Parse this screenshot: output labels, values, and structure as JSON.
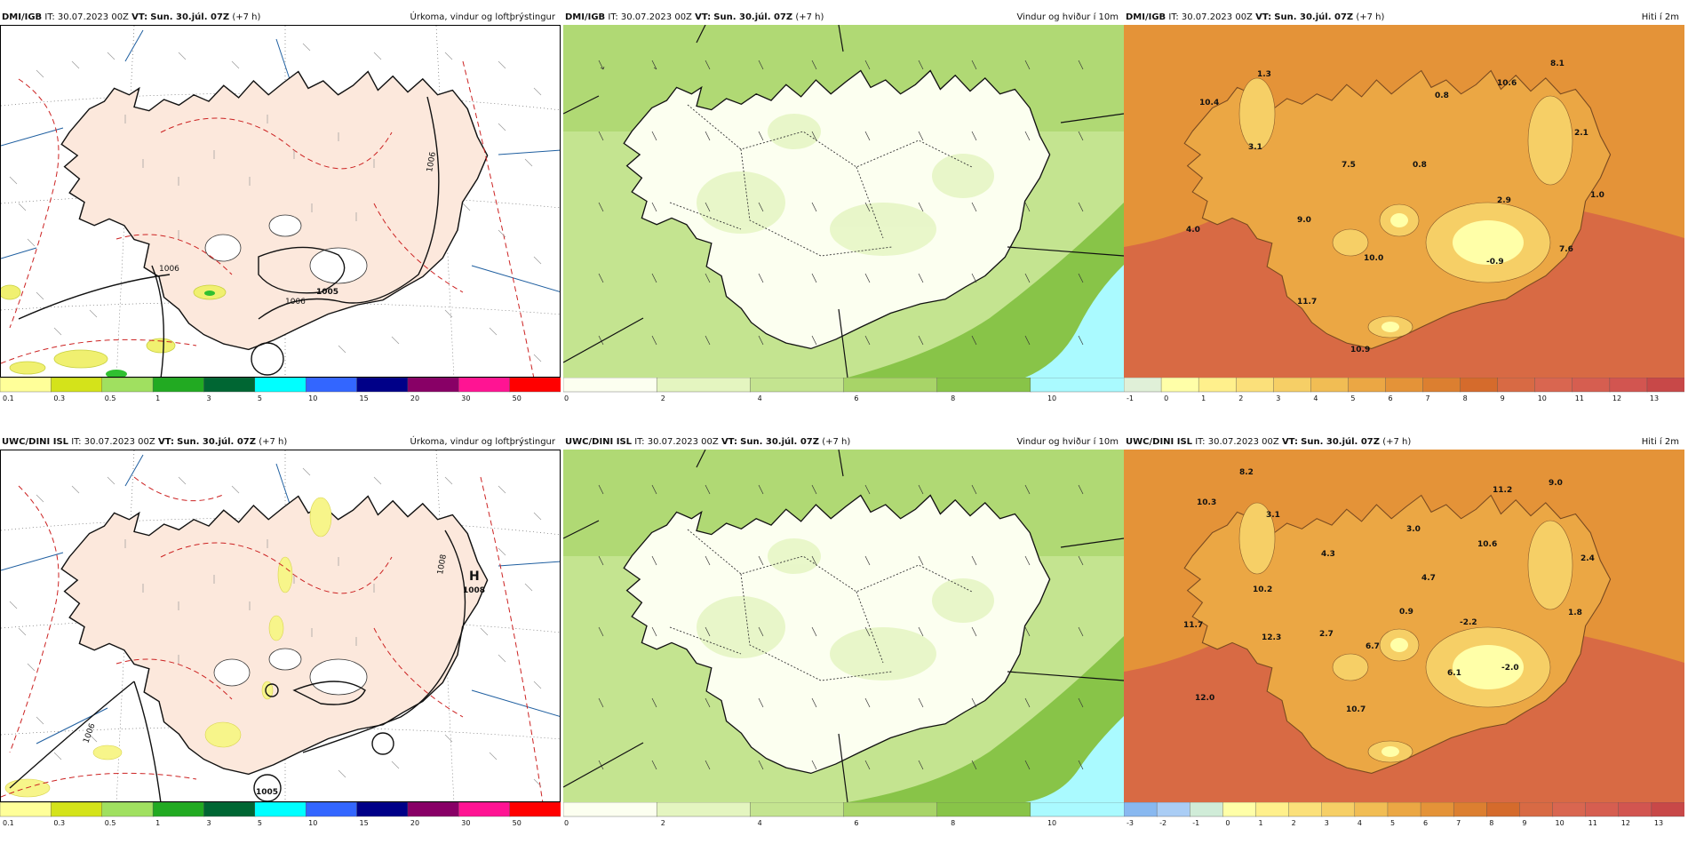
{
  "panels": [
    {
      "id": "p1",
      "type": "precip",
      "model": "DMI/IGB",
      "it_label": "IT:",
      "it_value": "30.07.2023 00Z",
      "vt_label": "VT:",
      "vt_value": "Sun. 30.júl. 07Z",
      "lead": "(+7 h)",
      "title": "Úrkoma, vindur og loftþrýstingur",
      "isobars": [
        "1006",
        "1006",
        "1005",
        "1006"
      ],
      "colorbar": {
        "labels": [
          "0.1",
          "0.3",
          "0.5",
          "1",
          "3",
          "5",
          "10",
          "15",
          "20",
          "30",
          "50"
        ],
        "colors": [
          "#ffff99",
          "#d4e31a",
          "#a0e060",
          "#22aa22",
          "#006633",
          "#00ffff",
          "#3366ff",
          "#000088",
          "#880066",
          "#ff1493",
          "#ff0000"
        ]
      }
    },
    {
      "id": "p2",
      "type": "wind",
      "model": "DMI/IGB",
      "it_label": "IT:",
      "it_value": "30.07.2023 00Z",
      "vt_label": "VT:",
      "vt_value": "Sun. 30.júl. 07Z",
      "lead": "(+7 h)",
      "title": "Vindur og hviður í 10m",
      "colorbar": {
        "labels": [
          "0",
          "2",
          "4",
          "6",
          "8",
          "10"
        ],
        "colors": [
          "#fcfff0",
          "#e4f5c0",
          "#c4e490",
          "#a8d468",
          "#88c448",
          "#aafaff"
        ]
      }
    },
    {
      "id": "p3",
      "type": "temp",
      "model": "DMI/IGB",
      "it_label": "IT:",
      "it_value": "30.07.2023 00Z",
      "vt_label": "VT:",
      "vt_value": "Sun. 30.júl. 07Z",
      "lead": "(+7 h)",
      "title": "Hiti í 2m",
      "values": [
        "10.4",
        "1.3",
        "10.6",
        "8.1",
        "0.8",
        "3.1",
        "7.5",
        "0.8",
        "2.1",
        "1.0",
        "2.9",
        "9.0",
        "4.0",
        "10.0",
        "-0.9",
        "7.6",
        "11.7",
        "10.9"
      ],
      "colorbar": {
        "labels": [
          "-1",
          "0",
          "1",
          "2",
          "3",
          "4",
          "5",
          "6",
          "7",
          "8",
          "9",
          "10",
          "11",
          "12",
          "13"
        ],
        "colors": [
          "#e0f0d8",
          "#ffffa8",
          "#fff08c",
          "#fbe07a",
          "#f6cf66",
          "#f1bd54",
          "#eba744",
          "#e49338",
          "#dc7f30",
          "#d56b2c",
          "#d86a44",
          "#d96650",
          "#d65e50",
          "#d25550",
          "#c84848"
        ]
      }
    },
    {
      "id": "p4",
      "type": "precip",
      "model": "UWC/DINI ISL",
      "it_label": "IT:",
      "it_value": "30.07.2023 00Z",
      "vt_label": "VT:",
      "vt_value": "Sun. 30.júl. 07Z",
      "lead": "(+7 h)",
      "title": "Úrkoma, vindur og loftþrýstingur",
      "isobars": [
        "1008",
        "1008",
        "1006",
        "1005"
      ],
      "high_marker": "H",
      "colorbar": {
        "labels": [
          "0.1",
          "0.3",
          "0.5",
          "1",
          "3",
          "5",
          "10",
          "15",
          "20",
          "30",
          "50"
        ],
        "colors": [
          "#ffff99",
          "#d4e31a",
          "#a0e060",
          "#22aa22",
          "#006633",
          "#00ffff",
          "#3366ff",
          "#000088",
          "#880066",
          "#ff1493",
          "#ff0000"
        ]
      }
    },
    {
      "id": "p5",
      "type": "wind",
      "model": "UWC/DINI ISL",
      "it_label": "IT:",
      "it_value": "30.07.2023 00Z",
      "vt_label": "VT:",
      "vt_value": "Sun. 30.júl. 07Z",
      "lead": "(+7 h)",
      "title": "Vindur og hviður í 10m",
      "colorbar": {
        "labels": [
          "0",
          "2",
          "4",
          "6",
          "8",
          "10"
        ],
        "colors": [
          "#fcfff0",
          "#e4f5c0",
          "#c4e490",
          "#a8d468",
          "#88c448",
          "#aafaff"
        ]
      }
    },
    {
      "id": "p6",
      "type": "temp",
      "model": "UWC/DINI ISL",
      "it_label": "IT:",
      "it_value": "30.07.2023 00Z",
      "vt_label": "VT:",
      "vt_value": "Sun. 30.júl. 07Z",
      "lead": "(+7 h)",
      "title": "Hiti í 2m",
      "values": [
        "8.2",
        "10.3",
        "3.1",
        "11.2",
        "9.0",
        "3.0",
        "4.3",
        "10.6",
        "2.4",
        "4.7",
        "10.2",
        "0.9",
        "1.8",
        "11.7",
        "12.3",
        "2.7",
        "6.7",
        "-2.2",
        "6.1",
        "-2.0",
        "12.0",
        "10.7"
      ],
      "colorbar": {
        "labels": [
          "-3",
          "-2",
          "-1",
          "0",
          "1",
          "2",
          "3",
          "4",
          "5",
          "6",
          "7",
          "8",
          "9",
          "10",
          "11",
          "12",
          "13"
        ],
        "colors": [
          "#88b8f0",
          "#aacdf5",
          "#d0ecd8",
          "#ffffa8",
          "#fff08c",
          "#fbe07a",
          "#f6cf66",
          "#f1bd54",
          "#eba744",
          "#e49338",
          "#dc7f30",
          "#d56b2c",
          "#d86a44",
          "#d96650",
          "#d65e50",
          "#d25550",
          "#c84848"
        ]
      }
    }
  ]
}
